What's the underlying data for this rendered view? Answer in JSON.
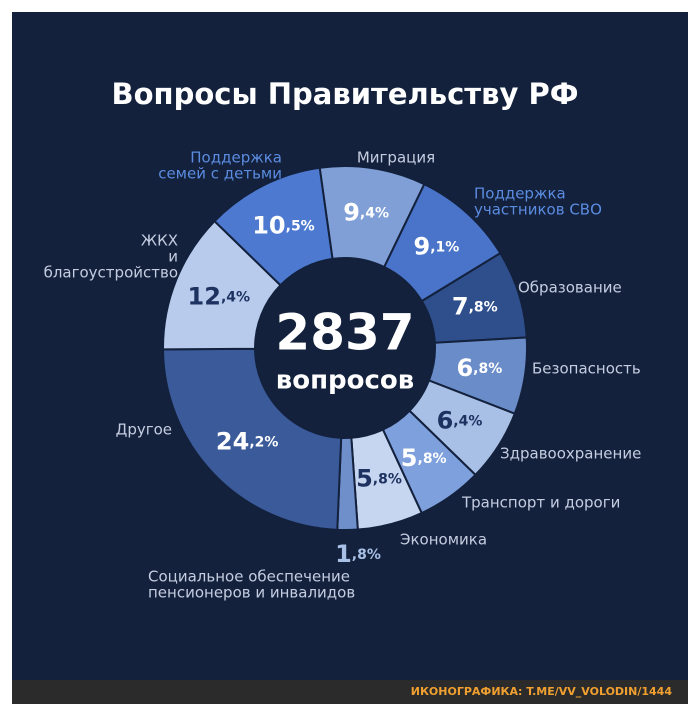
{
  "chart_data": {
    "type": "donut",
    "title": "Вопросы Правительству РФ",
    "center_value": "2837",
    "center_label": "вопросов",
    "categories": [
      [
        "Миграция"
      ],
      [
        "Поддержка",
        "участников СВО"
      ],
      [
        "Образование"
      ],
      [
        "Безопасность"
      ],
      [
        "Здравоохранение"
      ],
      [
        "Транспорт и дороги"
      ],
      [
        "Экономика"
      ],
      [
        "Социальное обеспечение",
        "пенсионеров и инвалидов"
      ],
      [
        "Другое"
      ],
      [
        "ЖКХ",
        "и",
        "благоустройство"
      ],
      [
        "Поддержка",
        "семей с детьми"
      ]
    ],
    "values": [
      9.4,
      9.1,
      7.8,
      6.8,
      6.4,
      5.8,
      5.8,
      1.8,
      24.2,
      12.4,
      10.5
    ],
    "value_labels": [
      "9,4%",
      "9,1%",
      "7,8%",
      "6,8%",
      "6,4%",
      "5,8%",
      "5,8%",
      "1,8%",
      "24,2%",
      "12,4%",
      "10,5%"
    ],
    "colors": [
      "#7f9fd6",
      "#4a74c9",
      "#2f4f8c",
      "#6a8cc9",
      "#a9c0e6",
      "#7ea0dc",
      "#c7d6f0",
      "#6f8fcb",
      "#3a5a9a",
      "#b8cbec",
      "#4d7ad0"
    ]
  },
  "credit": "ИКОНОГРАФИКА: T.ME/VV_VOLODIN/1444"
}
